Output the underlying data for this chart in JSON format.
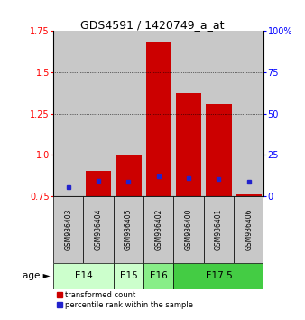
{
  "title": "GDS4591 / 1420749_a_at",
  "samples": [
    "GSM936403",
    "GSM936404",
    "GSM936405",
    "GSM936402",
    "GSM936400",
    "GSM936401",
    "GSM936406"
  ],
  "transformed_count": [
    0.755,
    0.905,
    1.005,
    1.685,
    1.37,
    1.305,
    0.765
  ],
  "blue_y": [
    0.808,
    0.845,
    0.84,
    0.87,
    0.863,
    0.855,
    0.84
  ],
  "ylim": [
    0.75,
    1.75
  ],
  "yticks_left": [
    0.75,
    1.0,
    1.25,
    1.5,
    1.75
  ],
  "yticks_right_vals": [
    0,
    25,
    50,
    75,
    100
  ],
  "age_groups": [
    {
      "label": "E14",
      "start": 0,
      "end": 2,
      "color": "#ccffcc"
    },
    {
      "label": "E15",
      "start": 2,
      "end": 3,
      "color": "#ccffcc"
    },
    {
      "label": "E16",
      "start": 3,
      "end": 4,
      "color": "#88ee88"
    },
    {
      "label": "E17.5",
      "start": 4,
      "end": 7,
      "color": "#44cc44"
    }
  ],
  "bar_color": "#cc0000",
  "blue_color": "#2222cc",
  "bg_color": "#c8c8c8",
  "bar_bottom": 0.75
}
